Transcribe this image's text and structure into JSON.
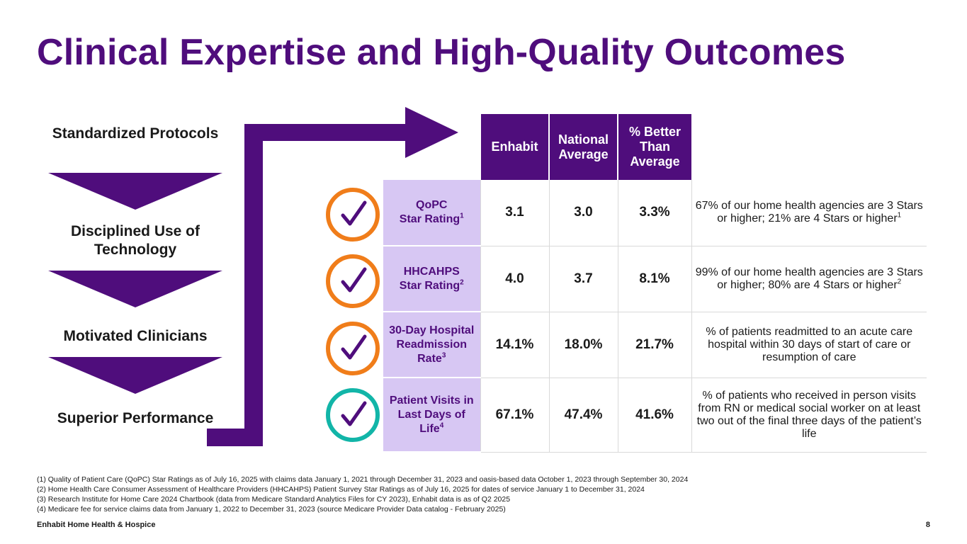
{
  "title": "Clinical Expertise and High-Quality Outcomes",
  "flow": {
    "steps": [
      "Standardized Protocols",
      "Disciplined Use of Technology",
      "Motivated Clinicians",
      "Superior Performance"
    ]
  },
  "table": {
    "headers": {
      "enhabit": "Enhabit",
      "national": "National Average",
      "better": "% Better Than Average"
    },
    "rows": [
      {
        "label": "QoPC\nStar Rating",
        "sup": "1",
        "enhabit": "3.1",
        "national": "3.0",
        "better": "3.3%",
        "desc": "67% of our home health agencies are 3 Stars or higher; 21% are 4 Stars or higher",
        "desc_sup": "1",
        "check_color": "#f07d1a"
      },
      {
        "label": "HHCAHPS\nStar Rating",
        "sup": "2",
        "enhabit": "4.0",
        "national": "3.7",
        "better": "8.1%",
        "desc": "99% of our home health agencies are 3 Stars or higher; 80% are 4 Stars or higher",
        "desc_sup": "2",
        "check_color": "#f07d1a"
      },
      {
        "label": "30-Day Hospital Readmission Rate",
        "sup": "3",
        "enhabit": "14.1%",
        "national": "18.0%",
        "better": "21.7%",
        "desc": "% of patients readmitted to an acute care hospital within 30 days of start of care or resumption of care",
        "desc_sup": "",
        "check_color": "#f07d1a"
      },
      {
        "label": "Patient Visits in Last Days of Life",
        "sup": "4",
        "enhabit": "67.1%",
        "national": "47.4%",
        "better": "41.6%",
        "desc": "% of patients who received in person visits from RN or medical social worker on at least two out of the final three days of the patient’s life",
        "desc_sup": "",
        "check_color": "#12b5a8"
      }
    ]
  },
  "footnotes": [
    "(1) Quality of Patient Care (QoPC) Star Ratings as of July 16, 2025 with claims data January 1, 2021 through December 31, 2023 and oasis-based data October 1, 2023 through September 30, 2024",
    "(2) Home Health Care Consumer Assessment of Healthcare Providers (HHCAHPS) Patient Survey Star Ratings as of July 16, 2025 for dates of service January 1 to December 31, 2024",
    "(3) Research Institute for Home Care 2024 Chartbook (data from Medicare Standard Analytics Files for CY 2023), Enhabit data is as of Q2 2025",
    "(4) Medicare fee for service claims data from January 1, 2022 to December 31, 2023 (source Medicare Provider Data catalog - February 2025)"
  ],
  "footer": {
    "company": "Enhabit Home Health & Hospice",
    "page": "8"
  },
  "colors": {
    "purple": "#4f0d7c",
    "lavender": "#d7c7f3",
    "orange": "#f07d1a",
    "teal": "#12b5a8"
  }
}
